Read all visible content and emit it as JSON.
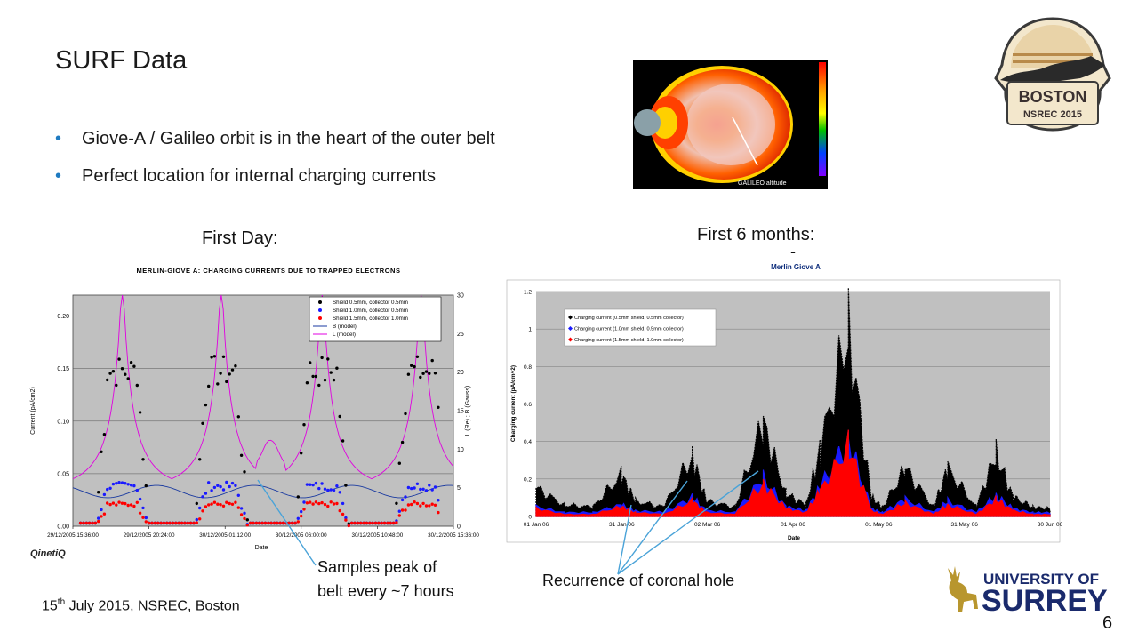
{
  "slide": {
    "title": "SURF Data",
    "bullets": [
      "Giove-A / Galileo orbit is in the heart of the outer belt",
      "Perfect location for internal charging currents"
    ],
    "caption_first_day": "First Day:",
    "caption_six_months": "First 6 months:",
    "dash": "-",
    "annotation_peak_line1": "Samples peak of",
    "annotation_peak_line2": "belt every ~7 hours",
    "annotation_coronal": "Recurrence of coronal hole",
    "footer_day": "15",
    "footer_sup": "th",
    "footer_rest": " July 2015, NSREC, Boston",
    "page_number": "6",
    "logo_boston_line1": "BOSTON",
    "logo_boston_line2": "NSREC 2015",
    "logo_university_line1": "UNIVERSITY OF",
    "logo_university_line2": "SURREY",
    "qinetiq": "QinetiQ",
    "galileo_label": "GALILEO altitude"
  },
  "colors": {
    "bullet": "#1f7bc1",
    "plot_bg": "#c0c0c0",
    "series_black": "#000000",
    "series_blue": "#1a1aff",
    "series_red": "#ff0000",
    "model_B": "#1a3aa0",
    "model_L": "#e000e0"
  },
  "chart_data": [
    {
      "type": "scatter",
      "title": "MERLIN-GIOVE A: CHARGING CURRENTS DUE TO TRAPPED ELECTRONS",
      "xlabel": "Date",
      "ylabel": "Current (pA/cm2)",
      "y2label": "L (Re) ; B (Gauss)",
      "ylim": [
        0,
        0.22
      ],
      "yticks": [
        "0.00",
        "0.05",
        "0.10",
        "0.15",
        "0.20"
      ],
      "y2lim": [
        0,
        30
      ],
      "y2ticks": [
        "0",
        "5",
        "10",
        "15",
        "20",
        "25",
        "30"
      ],
      "xticks": [
        "29/12/2005 15:36:00",
        "29/12/2005 20:24:00",
        "30/12/2005 01:12:00",
        "30/12/2005 06:00:00",
        "30/12/2005 10:48:00",
        "30/12/2005 15:36:00"
      ],
      "grid": true,
      "legend": "top-right",
      "peak_centers": [
        0.13,
        0.39,
        0.655,
        0.915
      ],
      "series": [
        {
          "name": "Shield 0.5mm, collector 0.5mm",
          "peak": 0.155,
          "color": "#000000"
        },
        {
          "name": "Shield 1.0mm, collector 0.5mm",
          "peak": 0.04,
          "color": "#1a1aff"
        },
        {
          "name": "Shield 1.5mm, collector 1.0mm",
          "peak": 0.022,
          "color": "#ff0000"
        },
        {
          "name": "B (model)",
          "color": "#1a3aa0"
        },
        {
          "name": "L (model)",
          "color": "#e000e0"
        }
      ]
    },
    {
      "type": "area",
      "title": "Merlin Giove A",
      "xlabel": "Date",
      "ylabel": "Charging current (pA/cm^2)",
      "ylim": [
        0,
        1.2
      ],
      "yticks": [
        "0",
        "0.2",
        "0.4",
        "0.6",
        "0.8",
        "1",
        "1.2"
      ],
      "xticks": [
        "01 Jan 06",
        "31 Jan 06",
        "02 Mar 06",
        "01 Apr 06",
        "01 May 06",
        "31 May 06",
        "30 Jun 06"
      ],
      "grid": true,
      "legend": "top-left",
      "x": [
        0,
        10,
        20,
        30,
        35,
        45,
        55,
        60,
        70,
        80,
        88,
        95,
        100,
        110,
        118,
        122,
        130,
        140,
        145,
        155,
        162,
        168,
        175,
        181
      ],
      "series": [
        {
          "name": "Charging current (0.5mm shield, 0.5mm collector)",
          "values": [
            0.15,
            0.06,
            0.05,
            0.22,
            0.08,
            0.05,
            0.32,
            0.08,
            0.05,
            0.49,
            0.12,
            0.06,
            0.35,
            0.99,
            0.1,
            0.05,
            0.25,
            0.05,
            0.25,
            0.05,
            0.33,
            0.1,
            0.05,
            0.04
          ]
        },
        {
          "name": "Charging current (1.0mm shield, 0.5mm collector)",
          "values": [
            0.05,
            0.02,
            0.02,
            0.06,
            0.03,
            0.02,
            0.1,
            0.03,
            0.02,
            0.2,
            0.05,
            0.03,
            0.15,
            0.4,
            0.04,
            0.02,
            0.09,
            0.02,
            0.08,
            0.02,
            0.11,
            0.04,
            0.02,
            0.02
          ]
        },
        {
          "name": "Charging current (1.5mm shield, 1.0mm collector)",
          "values": [
            0.04,
            0.01,
            0.01,
            0.05,
            0.02,
            0.01,
            0.08,
            0.02,
            0.01,
            0.17,
            0.04,
            0.02,
            0.13,
            0.37,
            0.03,
            0.01,
            0.07,
            0.01,
            0.06,
            0.01,
            0.09,
            0.03,
            0.01,
            0.01
          ]
        }
      ]
    }
  ]
}
